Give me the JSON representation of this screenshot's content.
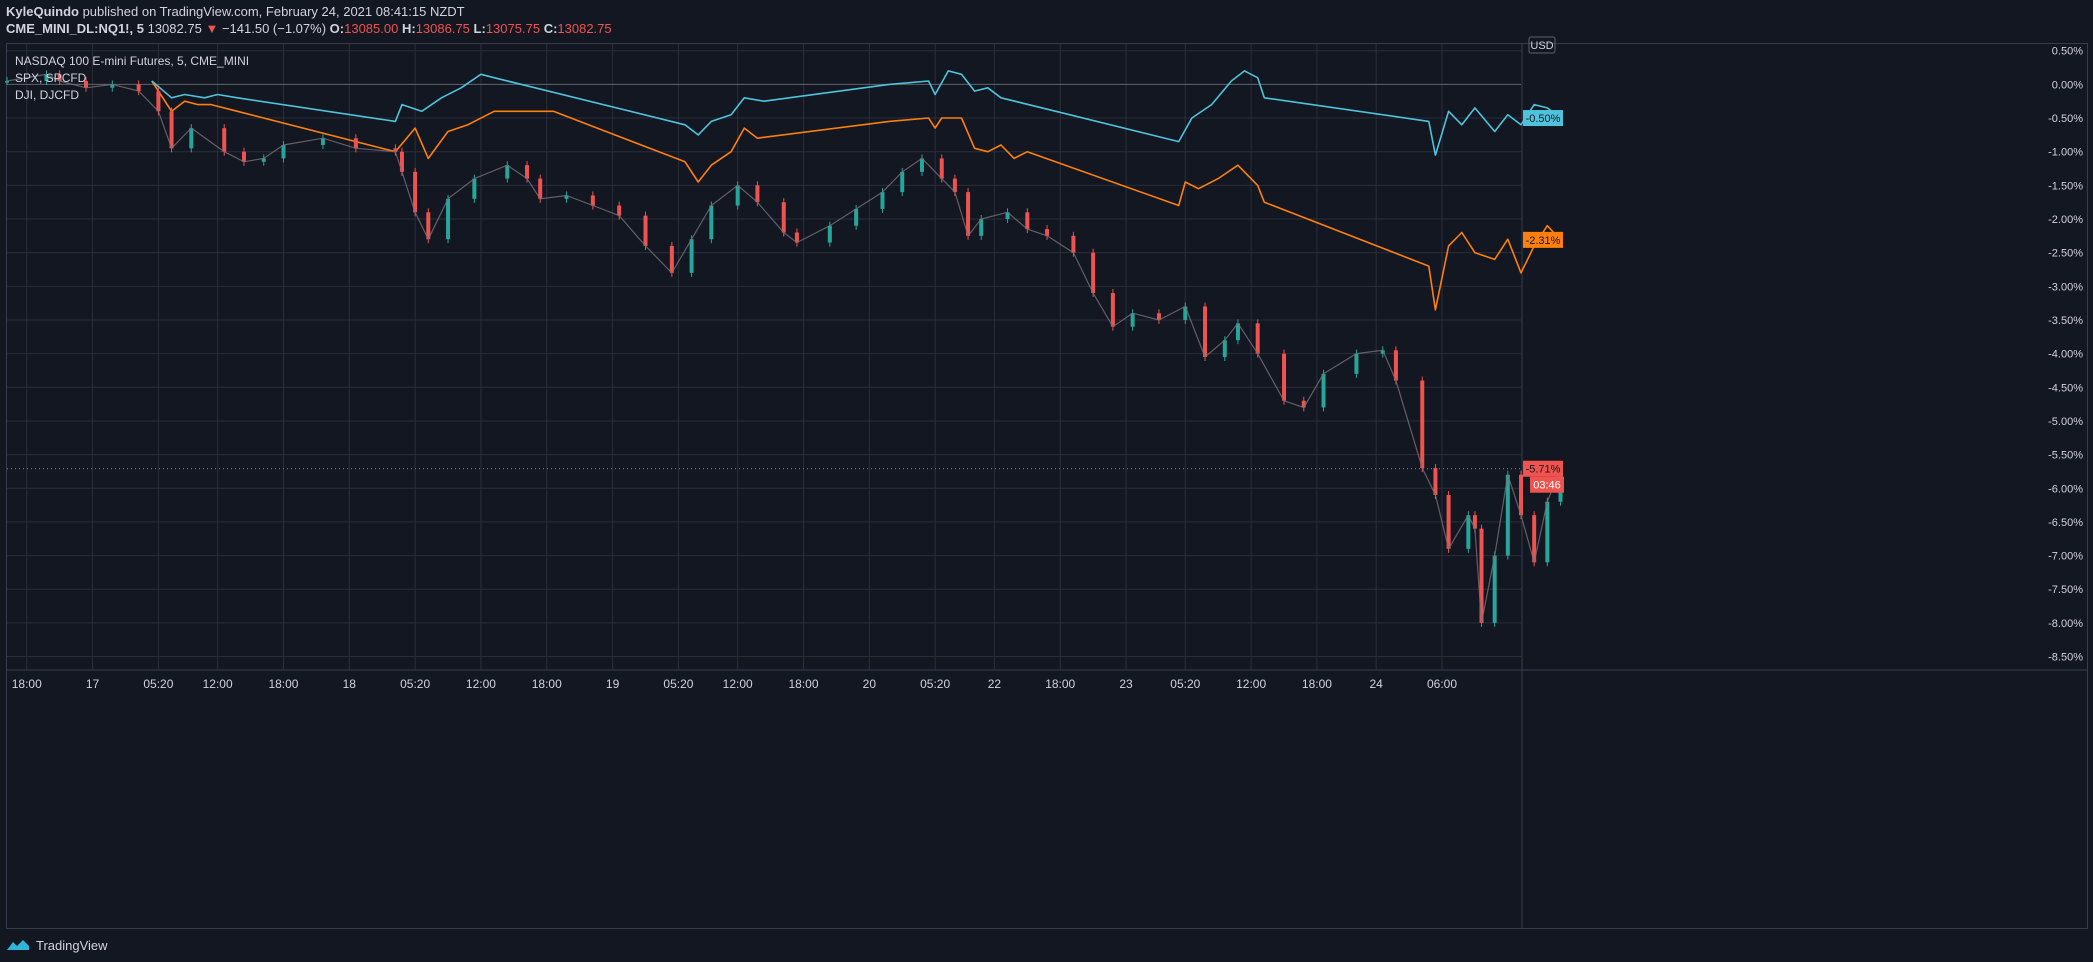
{
  "header": {
    "author": "KyleQuindo",
    "published": "published on TradingView.com, February 24, 2021 08:41:15 NZDT"
  },
  "ohlc": {
    "symbol": "CME_MINI_DL:NQ1!, 5",
    "last": "13082.75",
    "arrow": "▼",
    "change": "−141.50 (−1.07%)",
    "o_label": "O:",
    "o": "13085.00",
    "h_label": "H:",
    "h": "13086.75",
    "l_label": "L:",
    "l": "13075.75",
    "c_label": "C:",
    "c": "13082.75"
  },
  "legend": {
    "main": "NASDAQ 100 E-mini Futures, 5, CME_MINI",
    "s1": "SPX, SPCFD",
    "s2": "DJI, DJCFD"
  },
  "footer": {
    "brand": "TradingView"
  },
  "colors": {
    "background": "#131722",
    "grid": "#2a2e39",
    "candle_up": "#26a69a",
    "candle_down": "#ef5350",
    "spx": "#ff7f0e",
    "dji": "#4fc3dc",
    "axis_text": "#d1d4dc"
  },
  "chart_data": {
    "type": "line",
    "currency_label": "USD",
    "y_unit": "% change",
    "ylim": [
      -8.7,
      0.6
    ],
    "y_ticks": [
      0.5,
      0,
      -0.5,
      -1,
      -1.5,
      -2,
      -2.5,
      -3,
      -3.5,
      -4,
      -4.5,
      -5,
      -5.5,
      -6,
      -6.5,
      -7,
      -7.5,
      -8,
      -8.5
    ],
    "y_tick_labels": [
      "0.50%",
      "0.00%",
      "-0.50%",
      "-1.00%",
      "-1.50%",
      "-2.00%",
      "-2.50%",
      "-3.00%",
      "-3.50%",
      "-4.00%",
      "-4.50%",
      "-5.00%",
      "-5.50%",
      "-6.00%",
      "-6.50%",
      "-7.00%",
      "-7.50%",
      "-8.00%",
      "-8.50%"
    ],
    "x_ticks": [
      {
        "label": "18:00",
        "t": 0.3
      },
      {
        "label": "17",
        "t": 1.3
      },
      {
        "label": "05:20",
        "t": 2.3
      },
      {
        "label": "12:00",
        "t": 3.2
      },
      {
        "label": "18:00",
        "t": 4.2
      },
      {
        "label": "18",
        "t": 5.2
      },
      {
        "label": "05:20",
        "t": 6.2
      },
      {
        "label": "12:00",
        "t": 7.2
      },
      {
        "label": "18:00",
        "t": 8.2
      },
      {
        "label": "19",
        "t": 9.2
      },
      {
        "label": "05:20",
        "t": 10.2
      },
      {
        "label": "12:00",
        "t": 11.1
      },
      {
        "label": "18:00",
        "t": 12.1
      },
      {
        "label": "20",
        "t": 13.1
      },
      {
        "label": "05:20",
        "t": 14.1
      },
      {
        "label": "22",
        "t": 15.0
      },
      {
        "label": "18:00",
        "t": 16.0
      },
      {
        "label": "23",
        "t": 17.0
      },
      {
        "label": "05:20",
        "t": 17.9
      },
      {
        "label": "12:00",
        "t": 18.9
      },
      {
        "label": "18:00",
        "t": 19.9
      },
      {
        "label": "24",
        "t": 20.8
      },
      {
        "label": "06:00",
        "t": 21.8
      }
    ],
    "xlim": [
      0,
      23
    ],
    "last_markers": [
      {
        "series": "DJI, DJCFD",
        "label": "-0.50%"
      },
      {
        "series": "SPX, SPCFD",
        "label": "-2.31%"
      },
      {
        "series": "NASDAQ 100 E-mini Futures, 5, CME_MINI",
        "label": "-5.71%",
        "countdown": "03:46"
      }
    ],
    "current_level": -5.71,
    "series": [
      {
        "name": "NASDAQ 100 E-mini Futures, 5, CME_MINI",
        "kind": "candles",
        "points": [
          [
            0,
            0.05
          ],
          [
            0.6,
            0.15
          ],
          [
            0.8,
            0.05
          ],
          [
            1.2,
            -0.05
          ],
          [
            1.6,
            0.0
          ],
          [
            2.0,
            -0.1
          ],
          [
            2.3,
            -0.4
          ],
          [
            2.5,
            -0.95
          ],
          [
            2.8,
            -0.65
          ],
          [
            3.3,
            -1.0
          ],
          [
            3.6,
            -1.15
          ],
          [
            3.9,
            -1.1
          ],
          [
            4.2,
            -0.9
          ],
          [
            4.8,
            -0.8
          ],
          [
            5.3,
            -0.95
          ],
          [
            5.9,
            -1.0
          ],
          [
            6.0,
            -1.3
          ],
          [
            6.2,
            -1.9
          ],
          [
            6.4,
            -2.3
          ],
          [
            6.7,
            -1.7
          ],
          [
            7.1,
            -1.4
          ],
          [
            7.6,
            -1.2
          ],
          [
            7.9,
            -1.4
          ],
          [
            8.1,
            -1.7
          ],
          [
            8.5,
            -1.65
          ],
          [
            8.9,
            -1.8
          ],
          [
            9.3,
            -1.95
          ],
          [
            9.7,
            -2.4
          ],
          [
            10.1,
            -2.8
          ],
          [
            10.4,
            -2.3
          ],
          [
            10.7,
            -1.8
          ],
          [
            11.1,
            -1.5
          ],
          [
            11.4,
            -1.75
          ],
          [
            11.8,
            -2.2
          ],
          [
            12.0,
            -2.35
          ],
          [
            12.5,
            -2.1
          ],
          [
            12.9,
            -1.85
          ],
          [
            13.3,
            -1.6
          ],
          [
            13.6,
            -1.3
          ],
          [
            13.9,
            -1.1
          ],
          [
            14.2,
            -1.4
          ],
          [
            14.4,
            -1.6
          ],
          [
            14.6,
            -2.25
          ],
          [
            14.8,
            -2.0
          ],
          [
            15.2,
            -1.9
          ],
          [
            15.5,
            -2.15
          ],
          [
            15.8,
            -2.25
          ],
          [
            16.2,
            -2.5
          ],
          [
            16.5,
            -3.1
          ],
          [
            16.8,
            -3.6
          ],
          [
            17.1,
            -3.4
          ],
          [
            17.5,
            -3.5
          ],
          [
            17.9,
            -3.3
          ],
          [
            18.2,
            -4.05
          ],
          [
            18.5,
            -3.8
          ],
          [
            18.7,
            -3.55
          ],
          [
            19.0,
            -4.0
          ],
          [
            19.4,
            -4.7
          ],
          [
            19.7,
            -4.8
          ],
          [
            20.0,
            -4.3
          ],
          [
            20.5,
            -4.0
          ],
          [
            20.9,
            -3.95
          ],
          [
            21.1,
            -4.4
          ],
          [
            21.5,
            -5.7
          ],
          [
            21.7,
            -6.1
          ],
          [
            21.9,
            -6.9
          ],
          [
            22.2,
            -6.4
          ],
          [
            22.3,
            -6.6
          ],
          [
            22.4,
            -8.0
          ],
          [
            22.6,
            -7.0
          ],
          [
            22.8,
            -5.8
          ],
          [
            23.0,
            -6.4
          ],
          [
            23.2,
            -7.1
          ],
          [
            23.4,
            -6.2
          ],
          [
            23.6,
            -5.71
          ]
        ]
      },
      {
        "name": "SPX, SPCFD",
        "kind": "line",
        "points": [
          [
            2.2,
            0.05
          ],
          [
            2.5,
            -0.4
          ],
          [
            2.7,
            -0.25
          ],
          [
            2.9,
            -0.3
          ],
          [
            3.1,
            -0.3
          ],
          [
            3.5,
            -0.4
          ],
          [
            5.9,
            -1.0
          ],
          [
            6.2,
            -0.65
          ],
          [
            6.4,
            -1.1
          ],
          [
            6.7,
            -0.7
          ],
          [
            7.0,
            -0.6
          ],
          [
            7.4,
            -0.4
          ],
          [
            8.3,
            -0.4
          ],
          [
            10.3,
            -1.15
          ],
          [
            10.5,
            -1.45
          ],
          [
            10.7,
            -1.2
          ],
          [
            11.0,
            -1.0
          ],
          [
            11.2,
            -0.65
          ],
          [
            11.4,
            -0.8
          ],
          [
            13.4,
            -0.55
          ],
          [
            14.0,
            -0.5
          ],
          [
            14.1,
            -0.65
          ],
          [
            14.2,
            -0.5
          ],
          [
            14.5,
            -0.5
          ],
          [
            14.7,
            -0.95
          ],
          [
            14.9,
            -1.0
          ],
          [
            15.1,
            -0.9
          ],
          [
            15.3,
            -1.1
          ],
          [
            15.5,
            -1.0
          ],
          [
            17.8,
            -1.8
          ],
          [
            17.9,
            -1.45
          ],
          [
            18.1,
            -1.55
          ],
          [
            18.4,
            -1.4
          ],
          [
            18.7,
            -1.2
          ],
          [
            19.0,
            -1.5
          ],
          [
            19.1,
            -1.75
          ],
          [
            21.6,
            -2.7
          ],
          [
            21.7,
            -3.35
          ],
          [
            21.9,
            -2.4
          ],
          [
            22.1,
            -2.2
          ],
          [
            22.3,
            -2.5
          ],
          [
            22.6,
            -2.6
          ],
          [
            22.8,
            -2.3
          ],
          [
            23.0,
            -2.8
          ],
          [
            23.2,
            -2.4
          ],
          [
            23.4,
            -2.1
          ],
          [
            23.6,
            -2.31
          ]
        ]
      },
      {
        "name": "DJI, DJCFD",
        "kind": "line",
        "points": [
          [
            2.2,
            0.05
          ],
          [
            2.5,
            -0.2
          ],
          [
            2.7,
            -0.15
          ],
          [
            3.0,
            -0.2
          ],
          [
            3.2,
            -0.15
          ],
          [
            3.5,
            -0.2
          ],
          [
            5.9,
            -0.55
          ],
          [
            6.0,
            -0.3
          ],
          [
            6.3,
            -0.4
          ],
          [
            6.6,
            -0.2
          ],
          [
            6.9,
            -0.05
          ],
          [
            7.2,
            0.15
          ],
          [
            7.4,
            0.1
          ],
          [
            10.3,
            -0.6
          ],
          [
            10.5,
            -0.75
          ],
          [
            10.7,
            -0.55
          ],
          [
            11.0,
            -0.45
          ],
          [
            11.2,
            -0.2
          ],
          [
            11.5,
            -0.25
          ],
          [
            13.4,
            0.0
          ],
          [
            14.0,
            0.05
          ],
          [
            14.1,
            -0.15
          ],
          [
            14.3,
            0.2
          ],
          [
            14.5,
            0.15
          ],
          [
            14.7,
            -0.1
          ],
          [
            14.9,
            -0.05
          ],
          [
            15.1,
            -0.2
          ],
          [
            17.8,
            -0.85
          ],
          [
            18.0,
            -0.5
          ],
          [
            18.3,
            -0.3
          ],
          [
            18.6,
            0.05
          ],
          [
            18.8,
            0.2
          ],
          [
            19.0,
            0.1
          ],
          [
            19.1,
            -0.2
          ],
          [
            21.6,
            -0.55
          ],
          [
            21.7,
            -1.05
          ],
          [
            21.9,
            -0.4
          ],
          [
            22.1,
            -0.6
          ],
          [
            22.3,
            -0.35
          ],
          [
            22.6,
            -0.7
          ],
          [
            22.8,
            -0.45
          ],
          [
            23.0,
            -0.6
          ],
          [
            23.2,
            -0.3
          ],
          [
            23.4,
            -0.35
          ],
          [
            23.6,
            -0.5
          ]
        ]
      }
    ]
  }
}
